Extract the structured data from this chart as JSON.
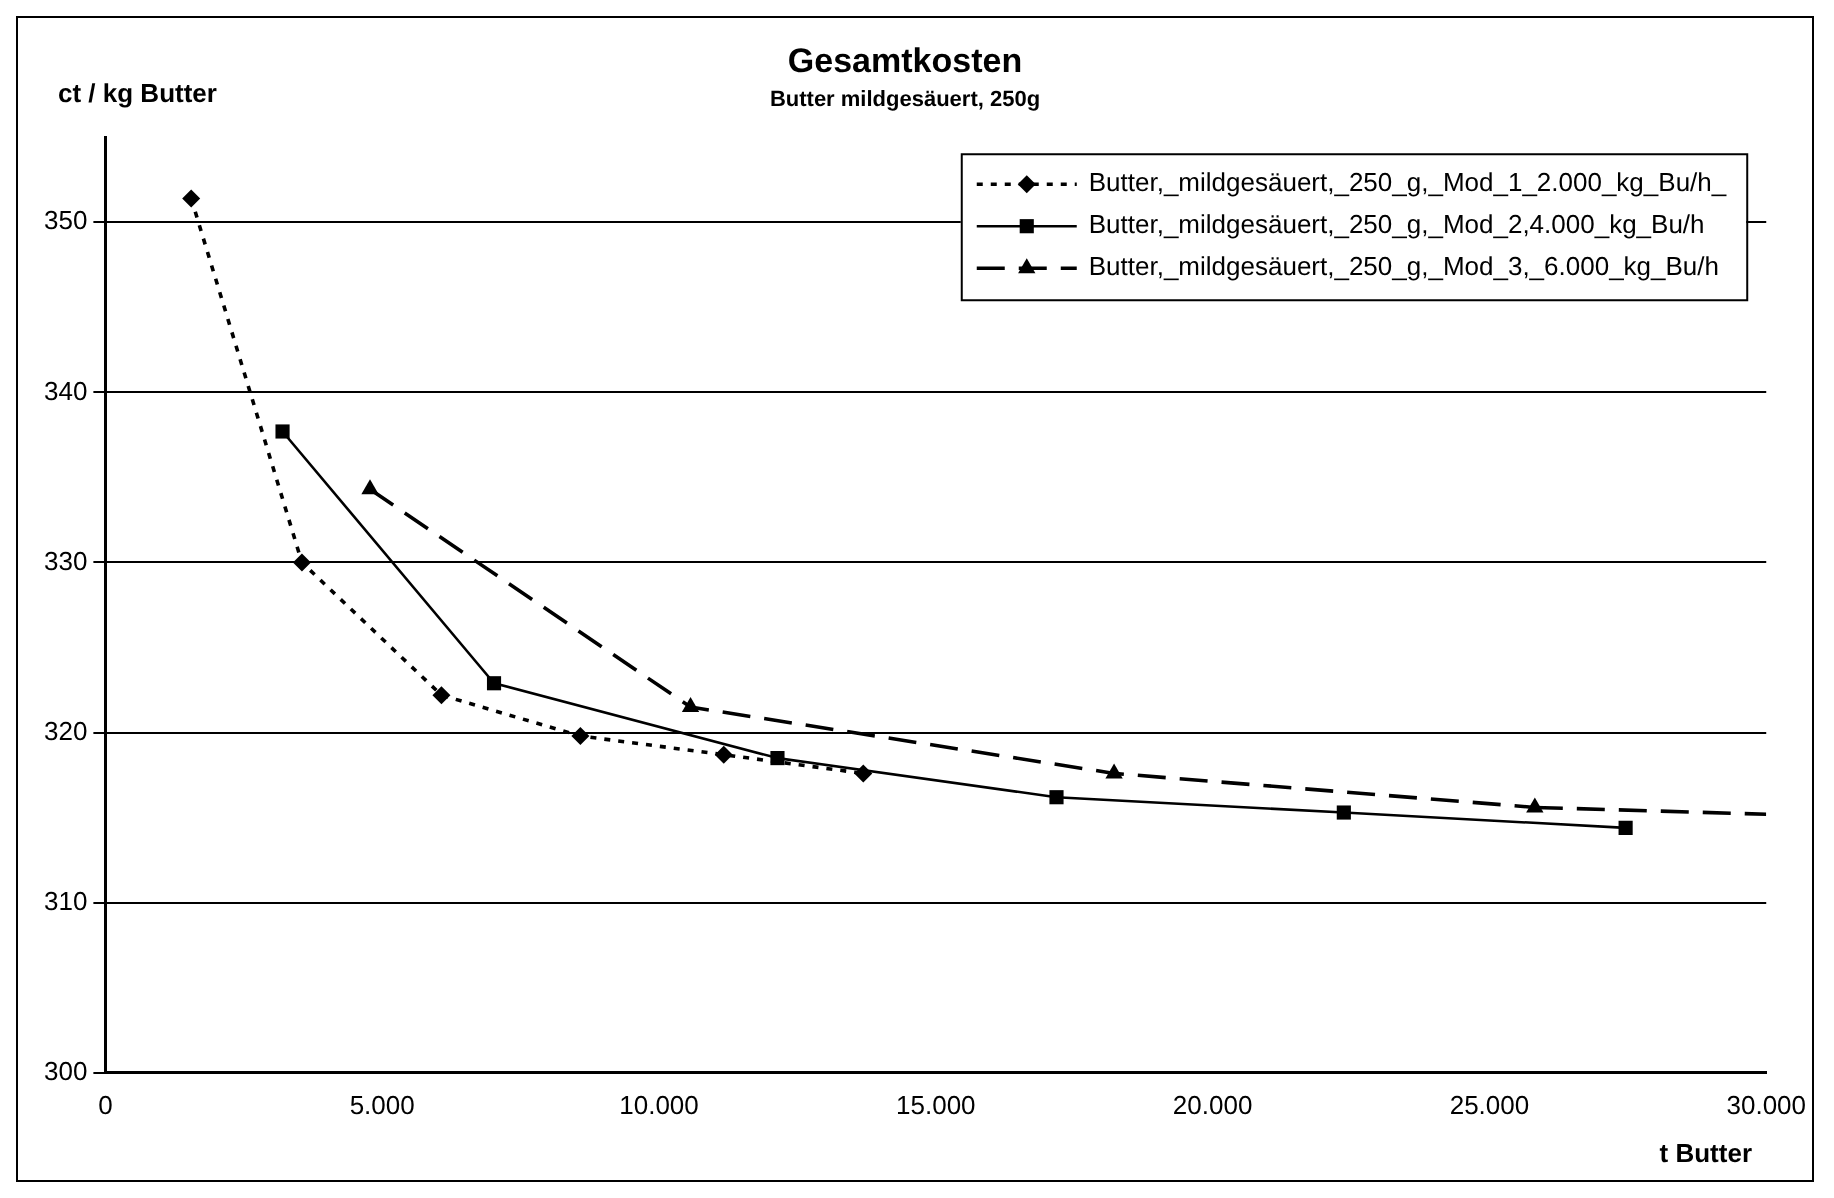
{
  "chart_data": {
    "type": "line",
    "title": "Gesamtkosten",
    "subtitle": "Butter mildgesäuert, 250g",
    "xlabel": "t Butter",
    "ylabel": "ct / kg Butter",
    "xlim": [
      0,
      30000
    ],
    "xticks": [
      {
        "value": 0,
        "label": "0"
      },
      {
        "value": 5000,
        "label": "5.000"
      },
      {
        "value": 10000,
        "label": "10.000"
      },
      {
        "value": 15000,
        "label": "15.000"
      },
      {
        "value": 20000,
        "label": "20.000"
      },
      {
        "value": 25000,
        "label": "25.000"
      },
      {
        "value": 30000,
        "label": "30.000"
      }
    ],
    "ylim": [
      300,
      355
    ],
    "yticks": [
      300,
      310,
      320,
      330,
      340,
      350
    ],
    "grid": "y",
    "legend": "top right",
    "series": [
      {
        "name": "Butter,_mildgesäuert,_250_g,_Mod_1_2.000_kg_Bu/h_",
        "color": "#000000",
        "marker": "diamond",
        "line_style": "dotted",
        "x": [
          1550,
          3550,
          6070,
          8580,
          11170,
          13690
        ],
        "values": [
          351.4,
          330.0,
          322.2,
          319.8,
          318.7,
          317.6
        ]
      },
      {
        "name": "Butter,_mildgesäuert,_250_g,_Mod_2,4.000_kg_Bu/h",
        "color": "#000000",
        "marker": "square",
        "line_style": "solid",
        "x": [
          3200,
          7020,
          12140,
          17180,
          22370,
          27460
        ],
        "values": [
          337.7,
          322.9,
          318.5,
          316.2,
          315.3,
          314.4
        ]
      },
      {
        "name": "Butter,_mildgesäuert,_250_g,_Mod_3,_6.000_kg_Bu/h",
        "color": "#000000",
        "marker": "triangle",
        "line_style": "dashed",
        "x": [
          4780,
          10570,
          18220,
          25820
        ],
        "values": [
          334.3,
          321.5,
          317.6,
          315.6
        ]
      },
      {
        "color": "#000000",
        "marker": "none",
        "line_style": "dashed",
        "x": [
          25820,
          30000
        ],
        "values": [
          315.6,
          315.2
        ]
      }
    ]
  }
}
